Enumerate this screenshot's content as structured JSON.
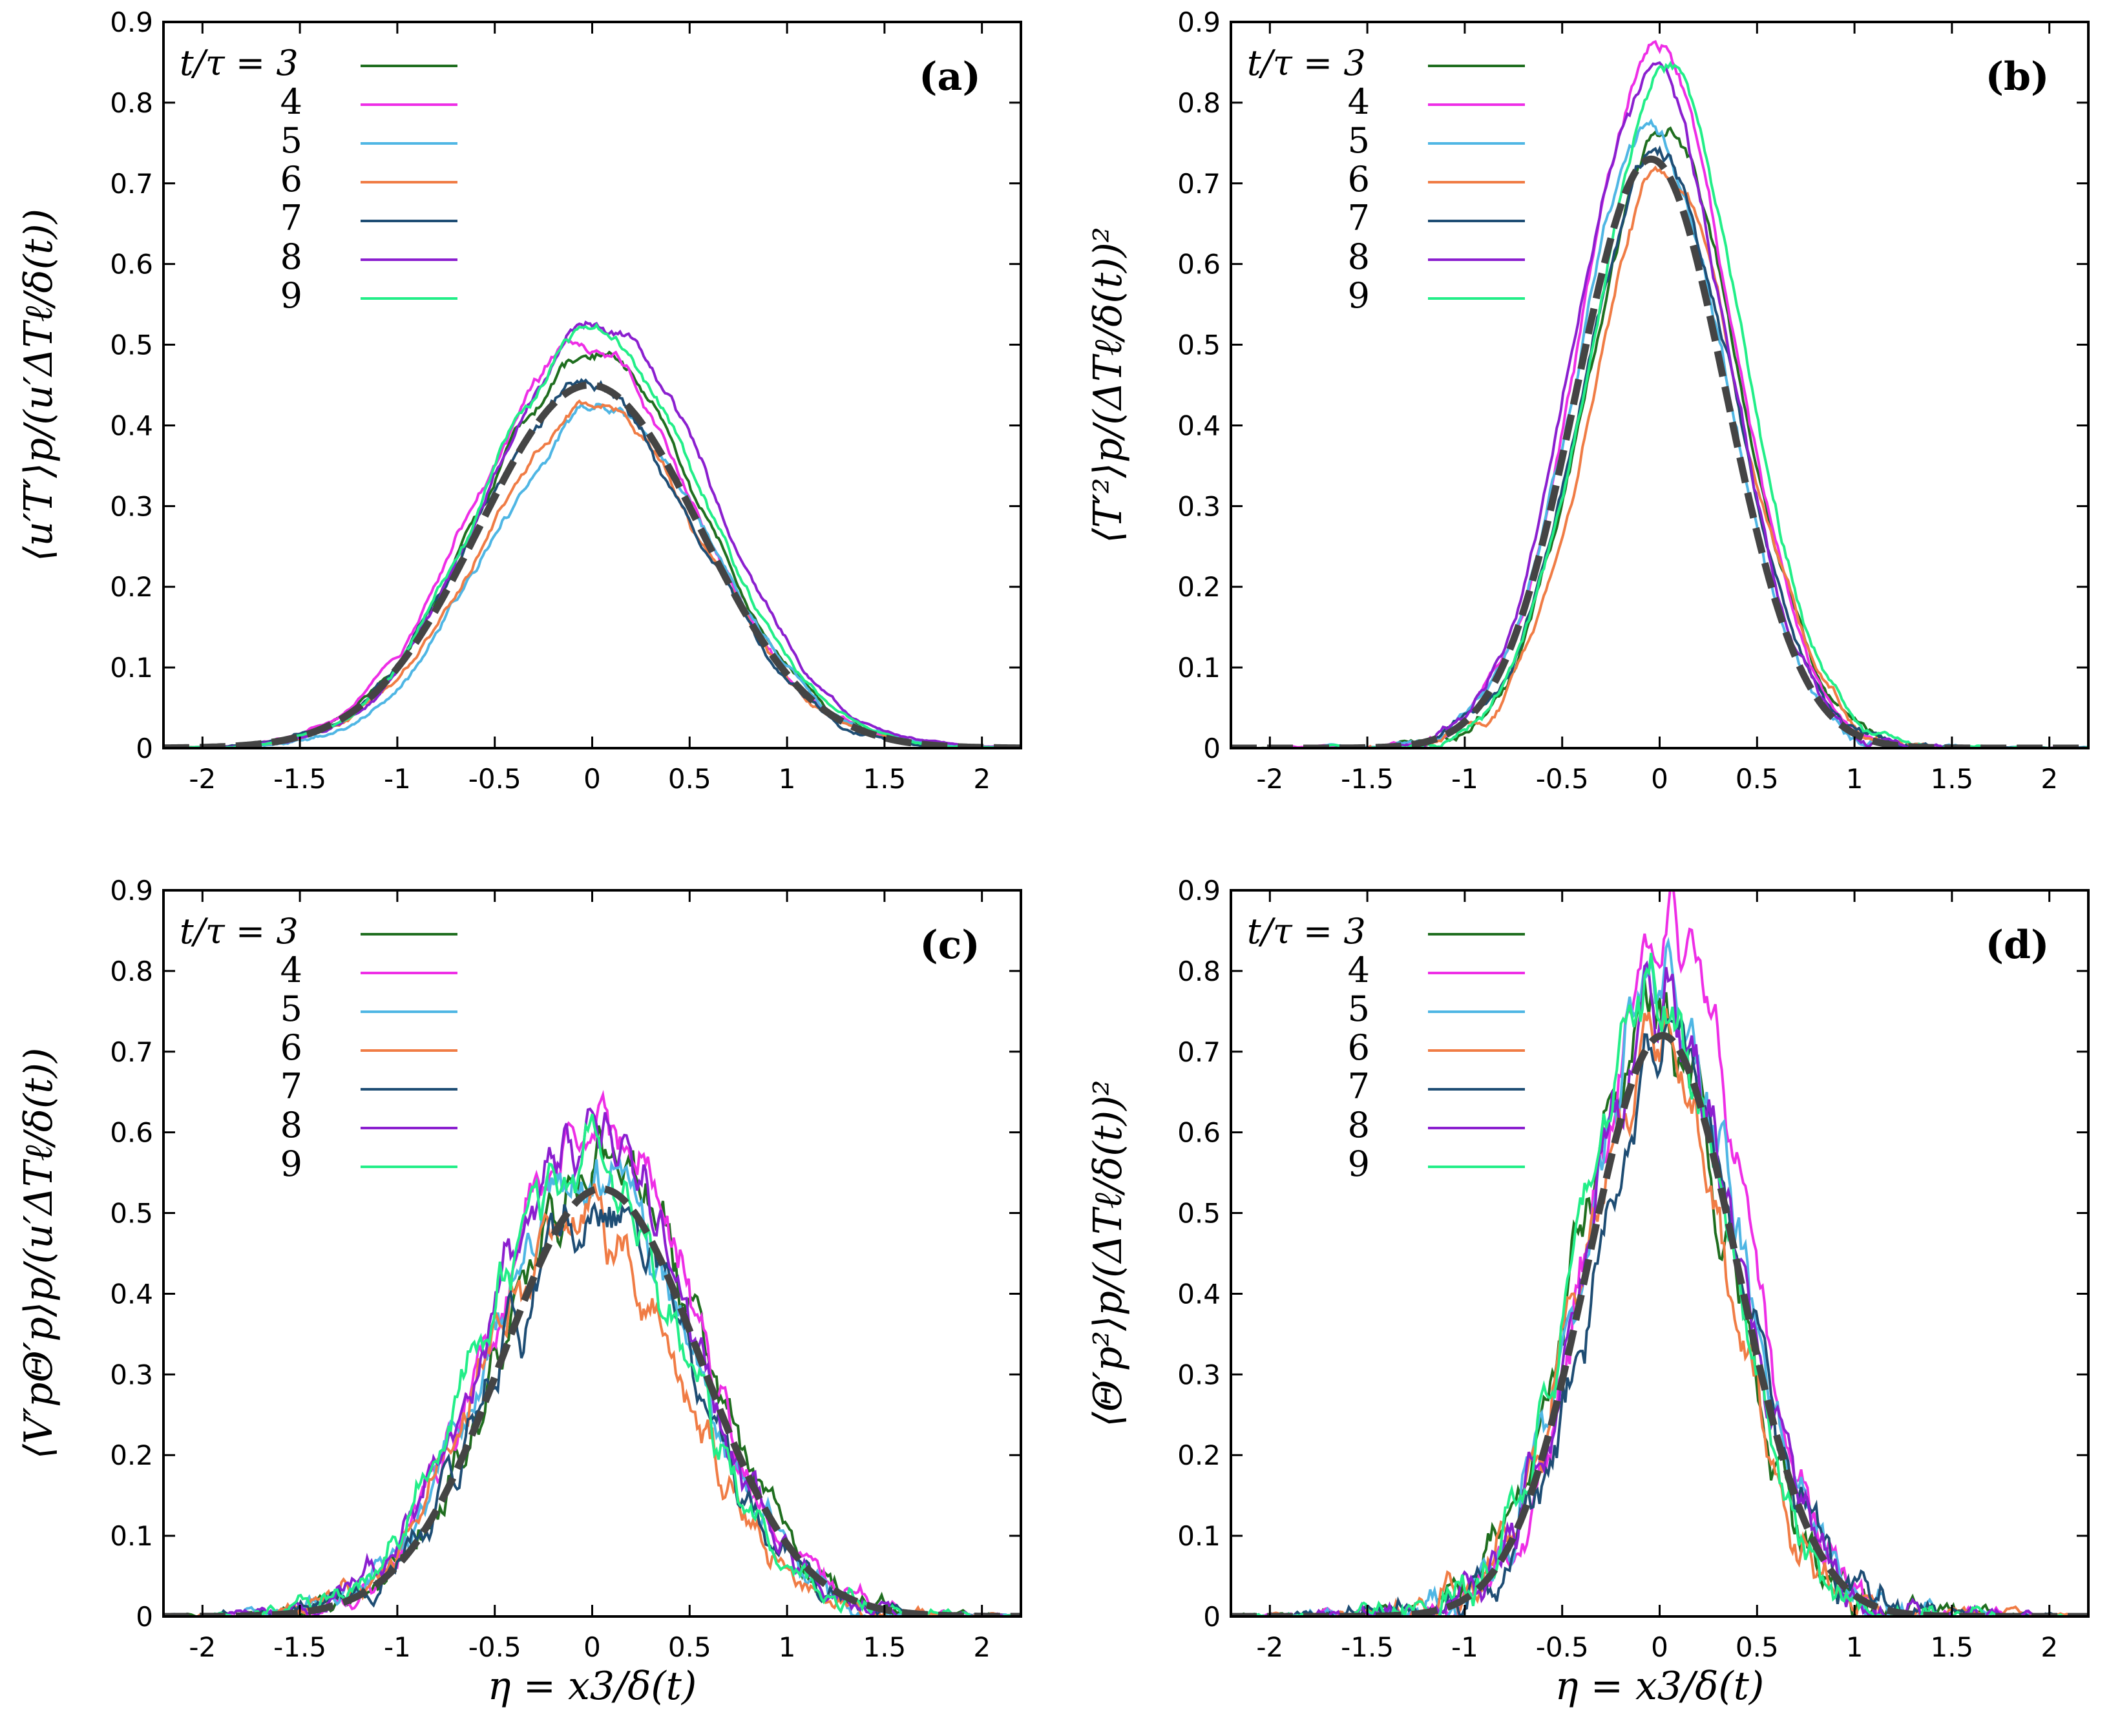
{
  "figure": {
    "legend_prefix": "t/τ = ",
    "series_colors": {
      "3": "#1f6e1f",
      "4": "#ee2ee6",
      "5": "#4fb6e4",
      "6": "#f07c45",
      "7": "#1e4d74",
      "8": "#8b1fcf",
      "9": "#22ee88",
      "mean": "#444444"
    }
  },
  "chart_data": [
    {
      "id": "a",
      "type": "line",
      "panel_label": "(a)",
      "title": "",
      "ylabel": "⟨u′T′⟩p/(u′ΔTℓ/δ(t))",
      "xlabel": "",
      "xlim": [
        -2.2,
        2.2
      ],
      "ylim": [
        0,
        0.9
      ],
      "xticks": [
        "-2",
        "-1.5",
        "-1",
        "-0.5",
        "0",
        "0.5",
        "1",
        "1.5",
        "2"
      ],
      "yticks": [
        "0",
        "0.1",
        "0.2",
        "0.3",
        "0.4",
        "0.5",
        "0.6",
        "0.7",
        "0.8",
        "0.9"
      ],
      "legend": [
        {
          "label": "t/τ = 3",
          "series": "3"
        },
        {
          "label": "4",
          "series": "4"
        },
        {
          "label": "5",
          "series": "5"
        },
        {
          "label": "6",
          "series": "6"
        },
        {
          "label": "7",
          "series": "7"
        },
        {
          "label": "8",
          "series": "8"
        },
        {
          "label": "9",
          "series": "9"
        }
      ],
      "peak": {
        "mean": 0.45,
        "3": 0.49,
        "4": 0.5,
        "5": 0.42,
        "6": 0.42,
        "7": 0.45,
        "8": 0.53,
        "9": 0.51
      },
      "width": 0.74,
      "noise": 0.015,
      "legend_placement": "top-left",
      "label_placement": "top-right"
    },
    {
      "id": "b",
      "type": "line",
      "panel_label": "(b)",
      "title": "",
      "ylabel": "⟨T′²⟩p/(ΔTℓ/δ(t))²",
      "xlabel": "",
      "xlim": [
        -2.2,
        2.2
      ],
      "ylim": [
        0,
        0.9
      ],
      "xticks": [
        "-2",
        "-1.5",
        "-1",
        "-0.5",
        "0",
        "0.5",
        "1",
        "1.5",
        "2"
      ],
      "yticks": [
        "0",
        "0.1",
        "0.2",
        "0.3",
        "0.4",
        "0.5",
        "0.6",
        "0.7",
        "0.8",
        "0.9"
      ],
      "legend": [
        {
          "label": "t/τ = 3",
          "series": "3"
        },
        {
          "label": "4",
          "series": "4"
        },
        {
          "label": "5",
          "series": "5"
        },
        {
          "label": "6",
          "series": "6"
        },
        {
          "label": "7",
          "series": "7"
        },
        {
          "label": "8",
          "series": "8"
        },
        {
          "label": "9",
          "series": "9"
        }
      ],
      "peak": {
        "mean": 0.73,
        "3": 0.76,
        "4": 0.87,
        "5": 0.77,
        "6": 0.71,
        "7": 0.74,
        "8": 0.84,
        "9": 0.84
      },
      "width": 0.5,
      "noise": 0.02,
      "legend_placement": "top-left",
      "label_placement": "top-right"
    },
    {
      "id": "c",
      "type": "line",
      "panel_label": "(c)",
      "title": "",
      "ylabel": "⟨V′pΘ′p⟩p/(u′ΔTℓ/δ(t))",
      "xlabel": "η = x3/δ(t)",
      "xlim": [
        -2.2,
        2.2
      ],
      "ylim": [
        0,
        0.9
      ],
      "xticks": [
        "-2",
        "-1.5",
        "-1",
        "-0.5",
        "0",
        "0.5",
        "1",
        "1.5",
        "2"
      ],
      "yticks": [
        "0",
        "0.1",
        "0.2",
        "0.3",
        "0.4",
        "0.5",
        "0.6",
        "0.7",
        "0.8",
        "0.9"
      ],
      "legend": [
        {
          "label": "t/τ = 3",
          "series": "3"
        },
        {
          "label": "4",
          "series": "4"
        },
        {
          "label": "5",
          "series": "5"
        },
        {
          "label": "6",
          "series": "6"
        },
        {
          "label": "7",
          "series": "7"
        },
        {
          "label": "8",
          "series": "8"
        },
        {
          "label": "9",
          "series": "9"
        }
      ],
      "peak": {
        "mean": 0.53,
        "3": 0.57,
        "4": 0.62,
        "5": 0.55,
        "6": 0.49,
        "7": 0.51,
        "8": 0.6,
        "9": 0.57
      },
      "width": 0.66,
      "noise": 0.03,
      "legend_placement": "top-left",
      "label_placement": "top-right"
    },
    {
      "id": "d",
      "type": "line",
      "panel_label": "(d)",
      "title": "",
      "ylabel": "⟨Θ′p²⟩p/(ΔTℓ/δ(t))²",
      "xlabel": "η = x3/δ(t)",
      "xlim": [
        -2.2,
        2.2
      ],
      "ylim": [
        0,
        0.9
      ],
      "xticks": [
        "-2",
        "-1.5",
        "-1",
        "-0.5",
        "0",
        "0.5",
        "1",
        "1.5",
        "2"
      ],
      "yticks": [
        "0",
        "0.1",
        "0.2",
        "0.3",
        "0.4",
        "0.5",
        "0.6",
        "0.7",
        "0.8",
        "0.9"
      ],
      "legend": [
        {
          "label": "t/τ = 3",
          "series": "3"
        },
        {
          "label": "4",
          "series": "4"
        },
        {
          "label": "5",
          "series": "5"
        },
        {
          "label": "6",
          "series": "6"
        },
        {
          "label": "7",
          "series": "7"
        },
        {
          "label": "8",
          "series": "8"
        },
        {
          "label": "9",
          "series": "9"
        }
      ],
      "peak": {
        "mean": 0.72,
        "3": 0.76,
        "4": 0.85,
        "5": 0.78,
        "6": 0.7,
        "7": 0.7,
        "8": 0.76,
        "9": 0.77
      },
      "width": 0.5,
      "noise": 0.035,
      "legend_placement": "top-left",
      "label_placement": "top-right"
    }
  ]
}
